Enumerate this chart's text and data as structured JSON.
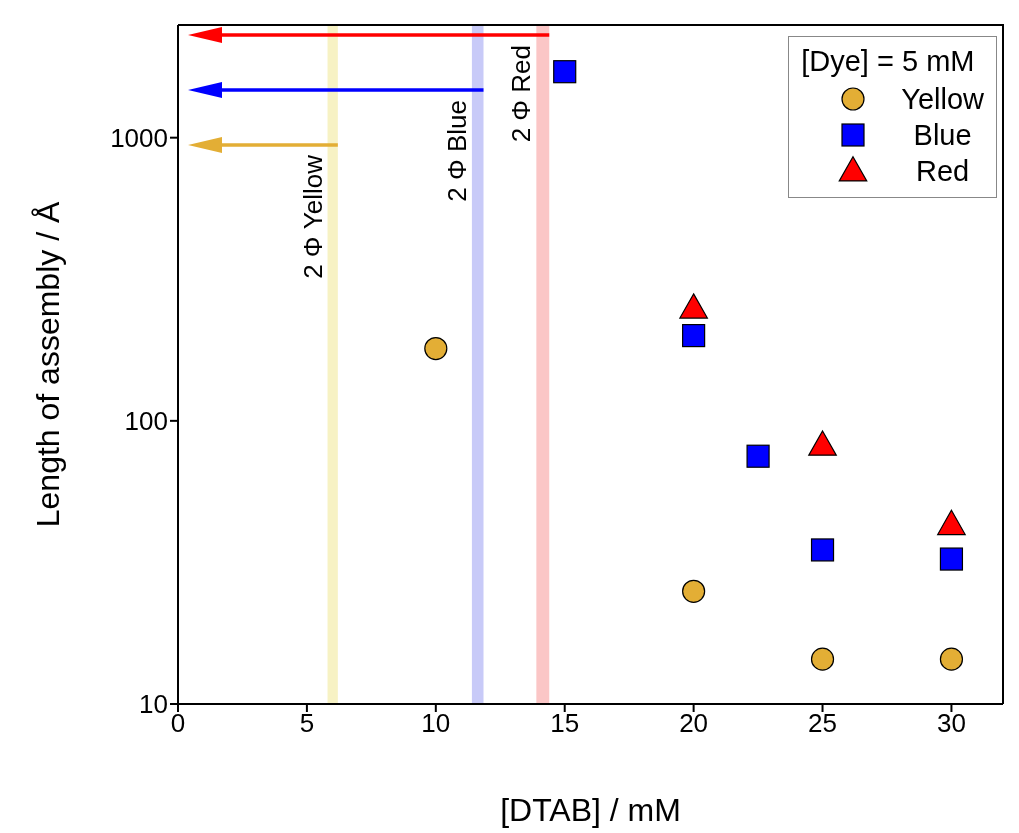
{
  "chart_data": {
    "type": "scatter",
    "xlabel": "[DTAB] / mM",
    "ylabel": "Length of assembly / Å",
    "legend_title": "[Dye] = 5 mM",
    "legend": "top right",
    "log": "y",
    "xlim": [
      0,
      32
    ],
    "xticks": [
      0,
      5,
      10,
      15,
      20,
      25,
      30
    ],
    "ylim": [
      10,
      2500
    ],
    "yticks": [
      10,
      100,
      1000
    ],
    "series": [
      {
        "name": "Yellow",
        "color": "#e3ae35",
        "marker": "circle",
        "x": [
          10,
          20,
          25,
          30
        ],
        "values": [
          180,
          25,
          14.4,
          14.4
        ]
      },
      {
        "name": "Blue",
        "color": "#0000ff",
        "marker": "square",
        "x": [
          15,
          20,
          22.5,
          25,
          30
        ],
        "values": [
          1710,
          200,
          75,
          35,
          32.5
        ]
      },
      {
        "name": "Red",
        "color": "#ff0000",
        "marker": "triangle",
        "x": [
          20,
          25,
          30
        ],
        "values": [
          250,
          82,
          43
        ]
      }
    ],
    "bands": [
      {
        "axis": "x",
        "from": 5.8,
        "to": 6.2,
        "label": "2 Φ Yellow",
        "color": "#f7f2c4"
      },
      {
        "axis": "x",
        "from": 11.4,
        "to": 11.85,
        "label": "2 Φ Blue",
        "color": "#c8caf8"
      },
      {
        "axis": "x",
        "from": 13.9,
        "to": 14.4,
        "label": "2 Φ Red",
        "color": "#fbc6c6"
      }
    ]
  }
}
